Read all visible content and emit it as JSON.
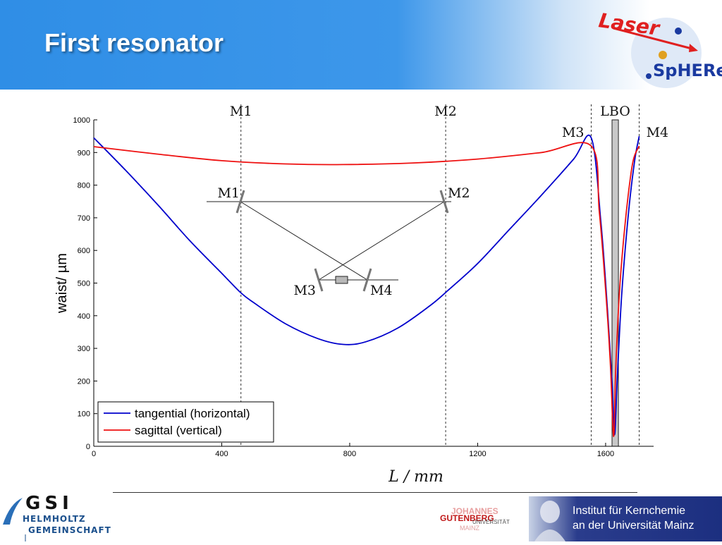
{
  "page": {
    "title": "First resonator"
  },
  "logos": {
    "laser_word": "Laser",
    "sphere_word": "SpHERe",
    "gsi_word": "GSI",
    "helmholtz_line1": "HELMHOLTZ",
    "helmholtz_line2": "GEMEINSCHAFT",
    "gutenberg_line1": "JOHANNES",
    "gutenberg_line2": "GUTENBERG",
    "gutenberg_line3": "UNIVERSITÄT",
    "gutenberg_line4": "MAINZ"
  },
  "institute": {
    "line1": "Institut für Kernchemie",
    "line2": "an der Universität Mainz"
  },
  "colors": {
    "tangential": "#0000cc",
    "sagittal": "#ee1111",
    "header_blue": "#3d97ea"
  },
  "chart_data": {
    "type": "line",
    "xlabel": "L / mm",
    "ylabel": "waist/ µm",
    "xlim": [
      0,
      1750
    ],
    "ylim": [
      0,
      1000
    ],
    "xticks": [
      0,
      400,
      800,
      1200,
      1600
    ],
    "yticks": [
      0,
      100,
      200,
      300,
      400,
      500,
      600,
      700,
      800,
      900,
      1000
    ],
    "grid": false,
    "legend_position": "bottom-left",
    "series": [
      {
        "name": "tangential (horizontal)",
        "color": "#0000cc",
        "x": [
          0,
          100,
          200,
          300,
          400,
          460,
          500,
          600,
          700,
          780,
          850,
          950,
          1050,
          1110,
          1200,
          1300,
          1400,
          1500,
          1555,
          1585,
          1605,
          1620,
          1628,
          1636,
          1650,
          1670,
          1690,
          1705
        ],
        "y": [
          945,
          845,
          740,
          630,
          530,
          470,
          440,
          375,
          330,
          312,
          320,
          362,
          430,
          480,
          560,
          665,
          770,
          880,
          945,
          690,
          430,
          200,
          35,
          200,
          460,
          700,
          870,
          950
        ]
      },
      {
        "name": "sagittal (vertical)",
        "color": "#ee1111",
        "x": [
          0,
          200,
          400,
          600,
          780,
          1000,
          1200,
          1400,
          1555,
          1580,
          1600,
          1615,
          1625,
          1632,
          1645,
          1665,
          1685,
          1705
        ],
        "y": [
          918,
          895,
          875,
          865,
          863,
          868,
          880,
          900,
          920,
          720,
          480,
          250,
          30,
          250,
          500,
          720,
          870,
          920
        ]
      }
    ],
    "vlines": [
      {
        "x": 460,
        "label": "M1"
      },
      {
        "x": 1100,
        "label": "M2"
      },
      {
        "x": 1555,
        "label": "M3"
      },
      {
        "x": 1705,
        "label": "M4"
      }
    ],
    "crystal": {
      "label": "LBO",
      "x_start": 1620,
      "x_end": 1640
    },
    "inset_labels": [
      "M1",
      "M2",
      "M3",
      "M4"
    ]
  }
}
